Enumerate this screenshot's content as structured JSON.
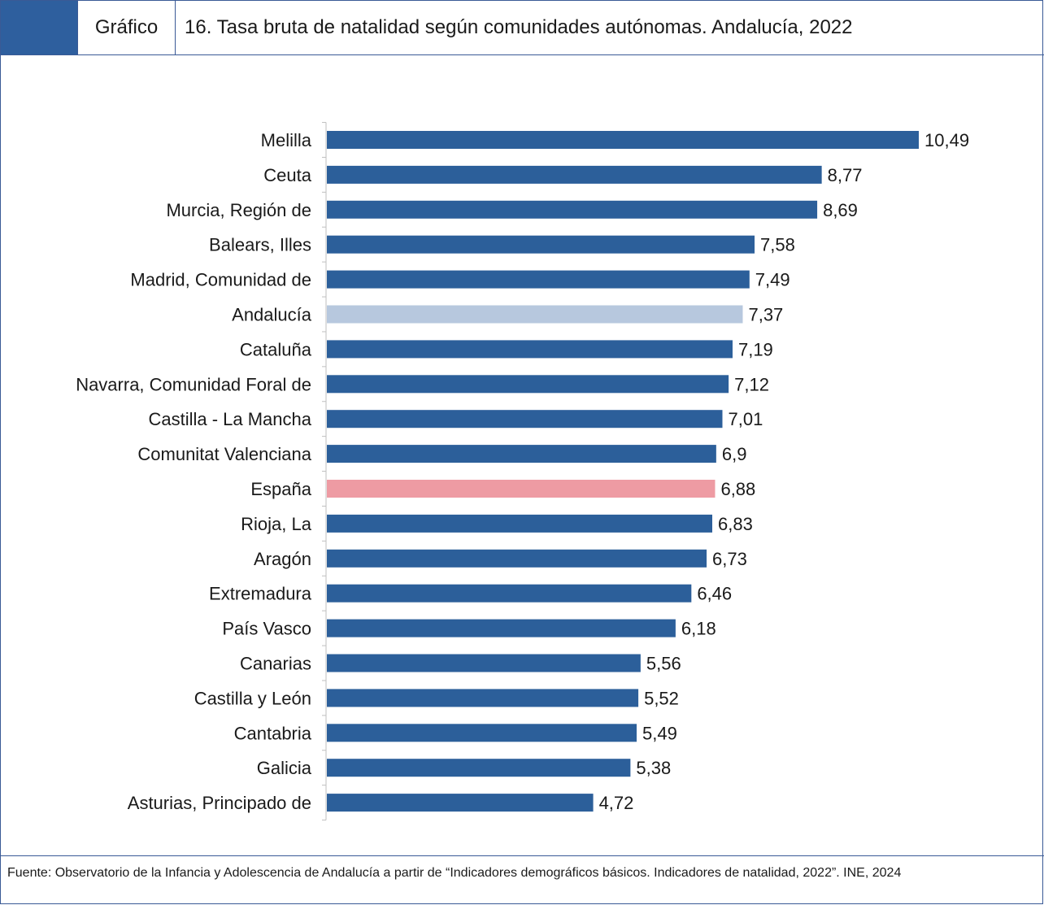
{
  "header": {
    "label": "Gráfico",
    "title": "16. Tasa bruta de natalidad según comunidades autónomas. Andalucía, 2022"
  },
  "colors": {
    "frame": "#3a5a96",
    "header_swatch": "#2e5f9e",
    "bar_default": "#2c5f9a",
    "bar_andalucia": "#b7c8de",
    "bar_espana": "#ee9ba3"
  },
  "chart_data": {
    "type": "bar",
    "orientation": "horizontal",
    "title": "",
    "xlabel": "",
    "ylabel": "",
    "xlim": [
      0,
      10.49
    ],
    "grid": false,
    "legend": "none",
    "categories": [
      "Melilla",
      "Ceuta",
      "Murcia, Región de",
      "Balears, Illes",
      "Madrid, Comunidad de",
      "Andalucía",
      "Cataluña",
      "Navarra, Comunidad Foral de",
      "Castilla - La Mancha",
      "Comunitat Valenciana",
      "España",
      "Rioja, La",
      "Aragón",
      "Extremadura",
      "País Vasco",
      "Canarias",
      "Castilla y León",
      "Cantabria",
      "Galicia",
      "Asturias, Principado de"
    ],
    "values": [
      10.49,
      8.77,
      8.69,
      7.58,
      7.49,
      7.37,
      7.19,
      7.12,
      7.01,
      6.9,
      6.88,
      6.83,
      6.73,
      6.46,
      6.18,
      5.56,
      5.52,
      5.49,
      5.38,
      4.72
    ],
    "value_labels": [
      "10,49",
      "8,77",
      "8,69",
      "7,58",
      "7,49",
      "7,37",
      "7,19",
      "7,12",
      "7,01",
      "6,9",
      "6,88",
      "6,83",
      "6,73",
      "6,46",
      "6,18",
      "5,56",
      "5,52",
      "5,49",
      "5,38",
      "4,72"
    ],
    "highlights": {
      "Andalucía": "bar_andalucia",
      "España": "bar_espana"
    }
  },
  "footer": {
    "source": "Fuente: Observatorio de la Infancia y Adolescencia de Andalucía a partir de “Indicadores demográficos básicos. Indicadores de natalidad, 2022”. INE, 2024"
  }
}
